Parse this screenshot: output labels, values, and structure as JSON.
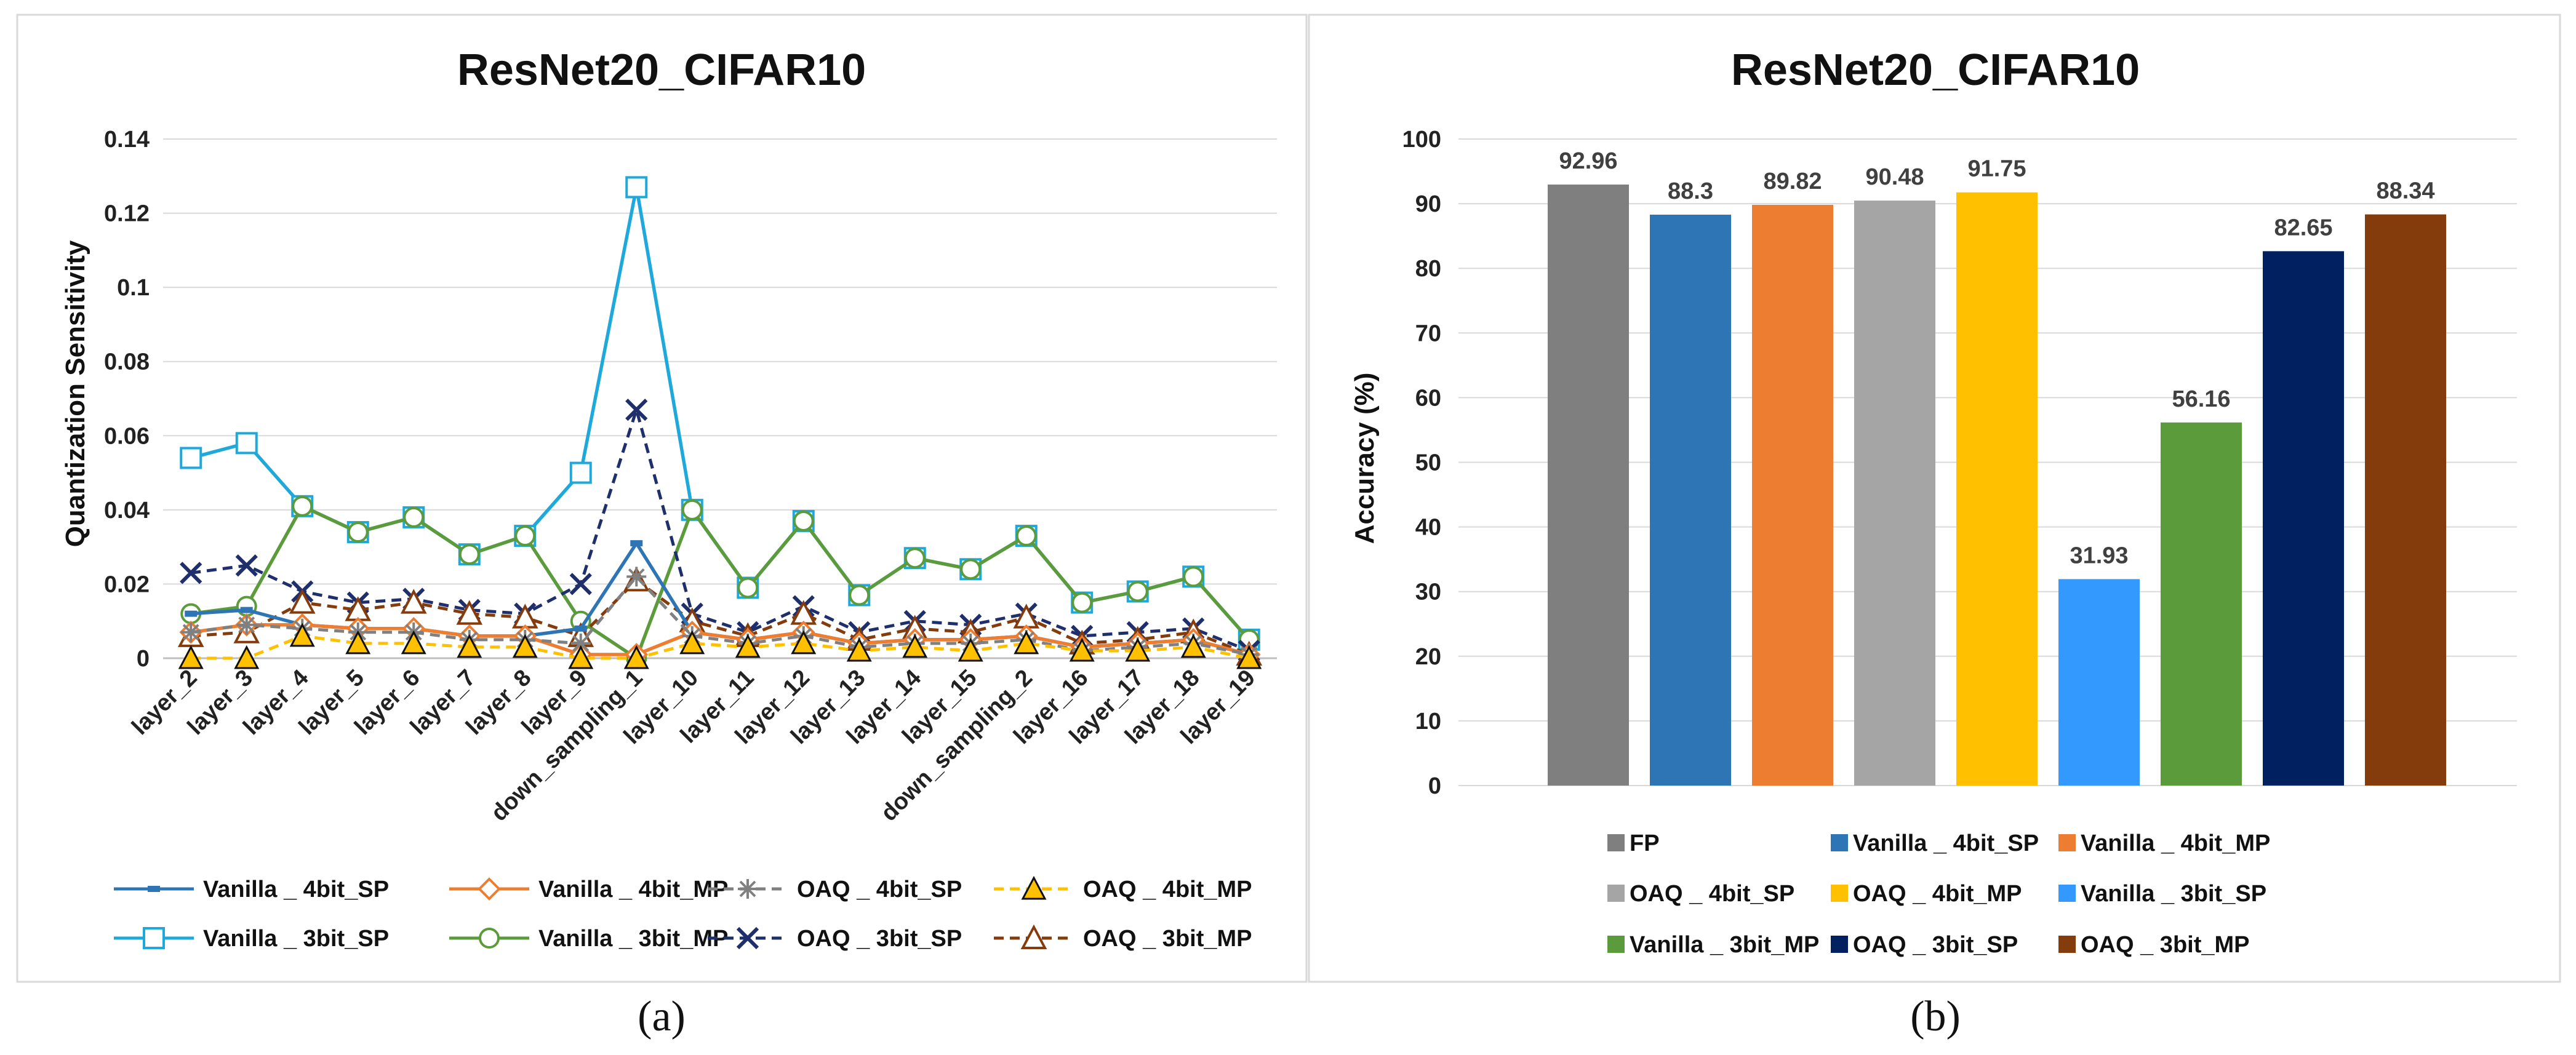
{
  "chart_data": [
    {
      "type": "line",
      "title": "ResNet20_CIFAR10",
      "xlabel": "",
      "ylabel": "Quantization Sensitivity",
      "ylim": [
        0,
        0.14
      ],
      "yticks": [
        "0",
        "0.02",
        "0.04",
        "0.06",
        "0.08",
        "0.1",
        "0.12",
        "0.14"
      ],
      "categories": [
        "layer_2",
        "layer_3",
        "layer_4",
        "layer_5",
        "layer_6",
        "layer_7",
        "layer_8",
        "layer_9",
        "down_sampling_1",
        "layer_10",
        "layer_11",
        "layer_12",
        "layer_13",
        "layer_14",
        "layer_15",
        "down_sampling_2",
        "layer_16",
        "layer_17",
        "layer_18",
        "layer_19"
      ],
      "series": [
        {
          "name": "Vanilla _ 4bit_SP",
          "color": "#2E75B6",
          "dash": "solid",
          "marker": "dash",
          "values": [
            0.012,
            0.013,
            0.009,
            0.008,
            0.008,
            0.006,
            0.006,
            0.008,
            0.031,
            0.007,
            0.005,
            0.007,
            0.004,
            0.005,
            0.005,
            0.006,
            0.003,
            0.004,
            0.005,
            0.001
          ]
        },
        {
          "name": "Vanilla _ 4bit_MP",
          "color": "#ED7D31",
          "dash": "solid",
          "marker": "diamond",
          "values": [
            0.007,
            0.009,
            0.009,
            0.008,
            0.008,
            0.006,
            0.006,
            0.001,
            0.001,
            0.007,
            0.005,
            0.007,
            0.004,
            0.005,
            0.005,
            0.006,
            0.003,
            0.004,
            0.005,
            0.001
          ]
        },
        {
          "name": "OAQ _ 4bit_SP",
          "color": "#808080",
          "dash": "dashed",
          "marker": "asterisk",
          "values": [
            0.007,
            0.009,
            0.008,
            0.007,
            0.007,
            0.005,
            0.005,
            0.004,
            0.022,
            0.006,
            0.004,
            0.006,
            0.003,
            0.004,
            0.004,
            0.005,
            0.002,
            0.003,
            0.004,
            0.001
          ]
        },
        {
          "name": "OAQ _ 4bit_MP",
          "color": "#FFC000",
          "dash": "dashed",
          "marker": "triangle-filled",
          "values": [
            0.0,
            0.0,
            0.006,
            0.004,
            0.004,
            0.003,
            0.003,
            0.0,
            0.0,
            0.004,
            0.003,
            0.004,
            0.002,
            0.003,
            0.002,
            0.004,
            0.002,
            0.002,
            0.003,
            0.0
          ]
        },
        {
          "name": "Vanilla _ 3bit_SP",
          "color": "#1FA9DB",
          "dash": "solid",
          "marker": "square",
          "values": [
            0.054,
            0.058,
            0.041,
            0.034,
            0.038,
            0.028,
            0.033,
            0.05,
            0.127,
            0.04,
            0.019,
            0.037,
            0.017,
            0.027,
            0.024,
            0.033,
            0.015,
            0.018,
            0.022,
            0.005
          ]
        },
        {
          "name": "Vanilla _ 3bit_MP",
          "color": "#5B9B3C",
          "dash": "solid",
          "marker": "circle",
          "values": [
            0.012,
            0.014,
            0.041,
            0.034,
            0.038,
            0.028,
            0.033,
            0.01,
            0.0,
            0.04,
            0.019,
            0.037,
            0.017,
            0.027,
            0.024,
            0.033,
            0.015,
            0.018,
            0.022,
            0.005
          ]
        },
        {
          "name": "OAQ _ 3bit_SP",
          "color": "#1F2F6B",
          "dash": "dashed",
          "marker": "x",
          "values": [
            0.023,
            0.025,
            0.018,
            0.015,
            0.016,
            0.013,
            0.012,
            0.02,
            0.067,
            0.012,
            0.007,
            0.014,
            0.007,
            0.01,
            0.009,
            0.012,
            0.006,
            0.007,
            0.008,
            0.002
          ]
        },
        {
          "name": "OAQ _ 3bit_MP",
          "color": "#843C0C",
          "dash": "dashed",
          "marker": "triangle",
          "values": [
            0.006,
            0.007,
            0.015,
            0.013,
            0.015,
            0.012,
            0.011,
            0.006,
            0.021,
            0.01,
            0.006,
            0.012,
            0.005,
            0.008,
            0.007,
            0.011,
            0.004,
            0.005,
            0.007,
            0.001
          ]
        }
      ],
      "caption": "(a)"
    },
    {
      "type": "bar",
      "title": "ResNet20_CIFAR10",
      "xlabel": "",
      "ylabel": "Accuracy (%)",
      "ylim": [
        0,
        100
      ],
      "yticks": [
        "0",
        "10",
        "20",
        "30",
        "40",
        "50",
        "60",
        "70",
        "80",
        "90",
        "100"
      ],
      "categories": [
        "FP",
        "Vanilla _ 4bit_SP",
        "Vanilla _ 4bit_MP",
        "OAQ _ 4bit_SP",
        "OAQ _ 4bit_MP",
        "Vanilla _ 3bit_SP",
        "Vanilla _ 3bit_MP",
        "OAQ _ 3bit_SP",
        "OAQ _ 3bit_MP"
      ],
      "values": [
        92.96,
        88.3,
        89.82,
        90.48,
        91.75,
        31.93,
        56.16,
        82.65,
        88.34
      ],
      "labels": [
        "92.96",
        "88.3",
        "89.82",
        "90.48",
        "91.75",
        "31.93",
        "56.16",
        "82.65",
        "88.34"
      ],
      "colors": [
        "#7F7F7F",
        "#2E75B6",
        "#ED7D31",
        "#A5A5A5",
        "#FFC000",
        "#3399FF",
        "#5B9B3C",
        "#002060",
        "#843C0C"
      ],
      "caption": "(b)"
    }
  ]
}
